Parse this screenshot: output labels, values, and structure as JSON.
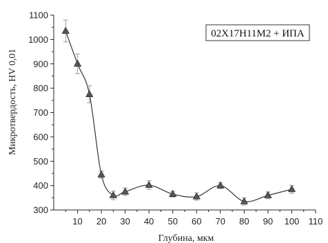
{
  "chart_data": {
    "type": "line",
    "title": "",
    "xlabel": "Глубина, мкм",
    "ylabel": "Микротвердость, HV 0,01",
    "xlim": [
      0,
      110
    ],
    "ylim": [
      300,
      1100
    ],
    "xticks": [
      10,
      20,
      30,
      40,
      50,
      60,
      70,
      80,
      90,
      100,
      110
    ],
    "yticks": [
      300,
      400,
      500,
      600,
      700,
      800,
      900,
      1000,
      1100
    ],
    "legend_position": "top-right",
    "series": [
      {
        "name": "02X17H11M2 + ИПА",
        "marker": "triangle",
        "color": "#555555",
        "x": [
          5,
          10,
          15,
          20,
          25,
          30,
          40,
          50,
          60,
          70,
          80,
          90,
          100
        ],
        "y": [
          1035,
          900,
          775,
          445,
          360,
          375,
          402,
          365,
          355,
          400,
          335,
          360,
          385
        ],
        "error": [
          45,
          40,
          35,
          15,
          18,
          15,
          18,
          12,
          15,
          12,
          15,
          14,
          16
        ]
      }
    ]
  }
}
